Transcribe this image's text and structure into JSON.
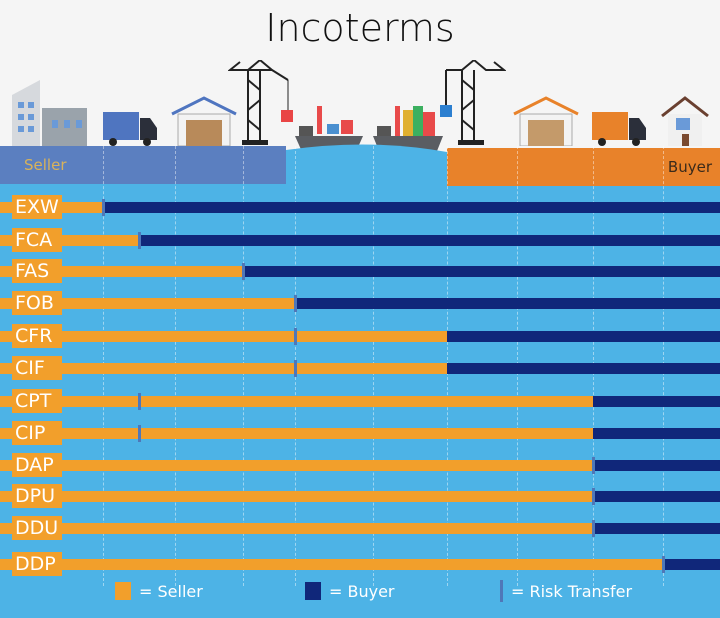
{
  "title": "Incoterms",
  "seller_label": "Seller",
  "buyer_label": "Buyer",
  "colors": {
    "seller": "#f29f2b",
    "buyer": "#10277a",
    "risk": "#4f77b8",
    "water": "#4db3e6",
    "seller_platform": "#5b7fc0",
    "buyer_platform": "#e8822a"
  },
  "stages": [
    "seller-factory",
    "truck",
    "warehouse",
    "crane-export",
    "ship-export",
    "ship-import",
    "crane-import",
    "warehouse-buyer",
    "truck-buyer",
    "buyer-house"
  ],
  "terms": [
    {
      "code": "EXW",
      "seller_until_stage": 0,
      "risk_at_stage": 0
    },
    {
      "code": "FCA",
      "seller_until_stage": 0.5,
      "risk_at_stage": 0.5
    },
    {
      "code": "FAS",
      "seller_until_stage": 2,
      "risk_at_stage": 2
    },
    {
      "code": "FOB",
      "seller_until_stage": 3,
      "risk_at_stage": 3
    },
    {
      "code": "CFR",
      "seller_until_stage": 5,
      "risk_at_stage": 3
    },
    {
      "code": "CIF",
      "seller_until_stage": 5,
      "risk_at_stage": 3
    },
    {
      "code": "CPT",
      "seller_until_stage": 7,
      "risk_at_stage": 0.5
    },
    {
      "code": "CIP",
      "seller_until_stage": 7,
      "risk_at_stage": 0.5
    },
    {
      "code": "DAP",
      "seller_until_stage": 7,
      "risk_at_stage": 7
    },
    {
      "code": "DPU",
      "seller_until_stage": 7,
      "risk_at_stage": 7
    },
    {
      "code": "DDU",
      "seller_until_stage": 7,
      "risk_at_stage": 7
    },
    {
      "code": "DDP",
      "seller_until_stage": 8,
      "risk_at_stage": 8
    }
  ],
  "legend": {
    "seller": "= Seller",
    "buyer": "= Buyer",
    "risk": "= Risk Transfer"
  }
}
